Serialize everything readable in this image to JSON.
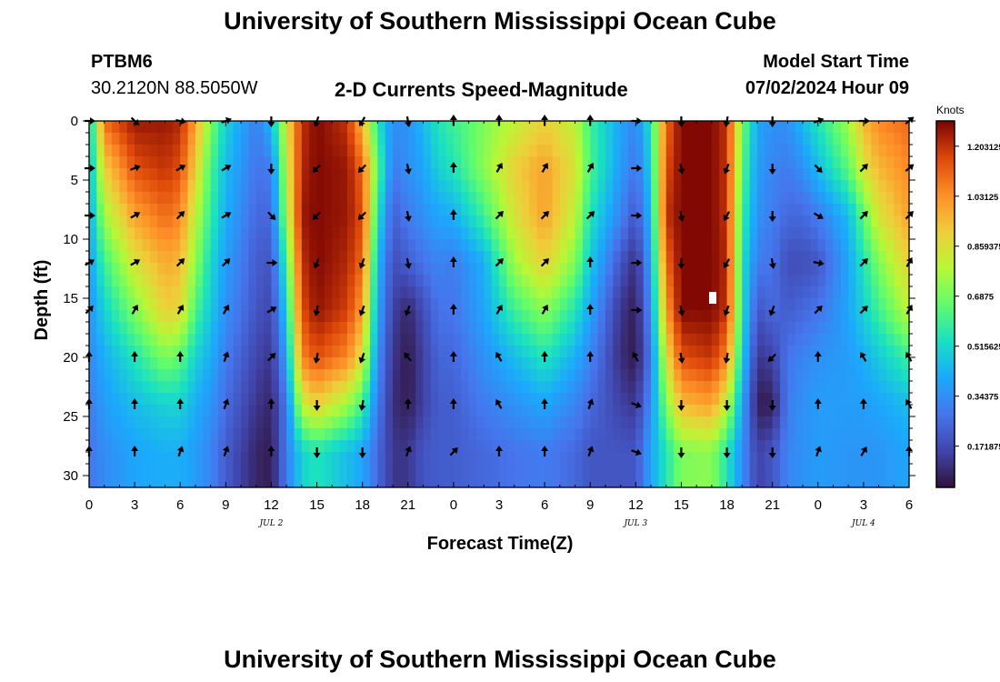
{
  "page": {
    "title": "University of Southern Mississippi Ocean Cube",
    "footer_title": "University of Southern Mississippi Ocean Cube"
  },
  "station": {
    "id": "PTBM6",
    "coords": "30.2120N  88.5050W"
  },
  "model": {
    "start_label": "Model Start Time",
    "start_value": "07/02/2024 Hour 09"
  },
  "chart_data": {
    "type": "heatmap",
    "title": "2-D Currents Speed-Magnitude",
    "xlabel": "Forecast Time(Z)",
    "ylabel": "Depth (ft)",
    "x_unit": "hours since 07/02/2024 00Z",
    "xlim": [
      0,
      54
    ],
    "ylim": [
      31,
      0
    ],
    "x_ticks": [
      0,
      3,
      6,
      9,
      12,
      15,
      18,
      21,
      24,
      27,
      30,
      33,
      36,
      39,
      42,
      45,
      48,
      51,
      54
    ],
    "x_tick_labels": [
      "0",
      "3",
      "6",
      "9",
      "12",
      "15",
      "18",
      "21",
      "0",
      "3",
      "6",
      "9",
      "12",
      "15",
      "18",
      "21",
      "0",
      "3",
      "6"
    ],
    "y_ticks": [
      0,
      5,
      10,
      15,
      20,
      25,
      30
    ],
    "y_tick_labels": [
      "0",
      "5",
      "10",
      "15",
      "20",
      "25",
      "30"
    ],
    "date_labels": [
      {
        "label": "JUL 2",
        "x": 12
      },
      {
        "label": "JUL 3",
        "x": 36
      },
      {
        "label": "JUL 4",
        "x": 51
      }
    ],
    "colorbar": {
      "title": "Knots",
      "range": [
        0.03,
        1.29
      ],
      "tick_values": [
        1.203125,
        1.03125,
        0.859375,
        0.6875,
        0.515625,
        0.34375,
        0.171875
      ],
      "tick_labels": [
        "1.203125",
        "1.03125",
        "0.859375",
        "0.6875",
        "0.515625",
        "0.34375",
        "0.171875"
      ]
    },
    "speed_profiles": [
      {
        "t": 0,
        "knots": [
          0.45,
          0.42,
          0.4,
          0.38,
          0.36,
          0.33,
          0.3,
          0.28
        ]
      },
      {
        "t": 1,
        "knots": [
          1.1,
          0.9,
          0.75,
          0.6,
          0.5,
          0.42,
          0.38,
          0.34
        ]
      },
      {
        "t": 3,
        "knots": [
          1.25,
          1.15,
          1.0,
          0.85,
          0.7,
          0.55,
          0.45,
          0.4
        ]
      },
      {
        "t": 5,
        "knots": [
          1.25,
          1.2,
          1.1,
          0.98,
          0.9,
          0.7,
          0.5,
          0.42
        ]
      },
      {
        "t": 6,
        "knots": [
          1.22,
          1.15,
          1.05,
          0.95,
          0.88,
          0.65,
          0.5,
          0.42
        ]
      },
      {
        "t": 7,
        "knots": [
          1.0,
          0.9,
          0.8,
          0.72,
          0.62,
          0.5,
          0.42,
          0.38
        ]
      },
      {
        "t": 8,
        "knots": [
          0.7,
          0.62,
          0.58,
          0.52,
          0.48,
          0.42,
          0.36,
          0.32
        ]
      },
      {
        "t": 9,
        "knots": [
          0.5,
          0.45,
          0.42,
          0.38,
          0.35,
          0.3,
          0.26,
          0.22
        ]
      },
      {
        "t": 11,
        "knots": [
          0.3,
          0.28,
          0.25,
          0.22,
          0.2,
          0.16,
          0.12,
          0.08
        ]
      },
      {
        "t": 12,
        "knots": [
          0.45,
          0.3,
          0.25,
          0.2,
          0.16,
          0.12,
          0.08,
          0.06
        ]
      },
      {
        "t": 13,
        "knots": [
          0.85,
          0.8,
          0.75,
          0.6,
          0.5,
          0.4,
          0.3,
          0.3
        ]
      },
      {
        "t": 14,
        "knots": [
          1.2,
          1.22,
          1.25,
          1.2,
          1.15,
          1.05,
          0.8,
          0.5
        ]
      },
      {
        "t": 15,
        "knots": [
          1.28,
          1.28,
          1.28,
          1.28,
          1.26,
          1.15,
          0.9,
          0.55
        ]
      },
      {
        "t": 17,
        "knots": [
          1.2,
          1.25,
          1.25,
          1.22,
          1.18,
          1.05,
          0.75,
          0.45
        ]
      },
      {
        "t": 18,
        "knots": [
          0.95,
          1.1,
          1.15,
          1.1,
          1.0,
          0.85,
          0.6,
          0.4
        ]
      },
      {
        "t": 19,
        "knots": [
          0.55,
          0.65,
          0.55,
          0.45,
          0.4,
          0.35,
          0.3,
          0.25
        ]
      },
      {
        "t": 20,
        "knots": [
          0.35,
          0.3,
          0.22,
          0.18,
          0.15,
          0.12,
          0.1,
          0.12
        ]
      },
      {
        "t": 21,
        "knots": [
          0.35,
          0.35,
          0.3,
          0.22,
          0.08,
          0.05,
          0.06,
          0.12
        ]
      },
      {
        "t": 22,
        "knots": [
          0.45,
          0.4,
          0.35,
          0.28,
          0.18,
          0.15,
          0.15,
          0.2
        ]
      },
      {
        "t": 23,
        "knots": [
          0.55,
          0.5,
          0.4,
          0.32,
          0.28,
          0.24,
          0.22,
          0.22
        ]
      },
      {
        "t": 24,
        "knots": [
          0.6,
          0.55,
          0.42,
          0.3,
          0.28,
          0.25,
          0.22,
          0.22
        ]
      },
      {
        "t": 26,
        "knots": [
          0.7,
          0.72,
          0.6,
          0.42,
          0.4,
          0.35,
          0.3,
          0.25
        ]
      },
      {
        "t": 28,
        "knots": [
          0.8,
          0.9,
          0.85,
          0.75,
          0.6,
          0.45,
          0.35,
          0.28
        ]
      },
      {
        "t": 30,
        "knots": [
          0.9,
          1.0,
          1.0,
          0.9,
          0.72,
          0.55,
          0.4,
          0.3
        ]
      },
      {
        "t": 32,
        "knots": [
          0.8,
          0.85,
          0.8,
          0.7,
          0.55,
          0.42,
          0.32,
          0.25
        ]
      },
      {
        "t": 33,
        "knots": [
          0.6,
          0.62,
          0.55,
          0.48,
          0.4,
          0.32,
          0.25,
          0.2
        ]
      },
      {
        "t": 35,
        "knots": [
          0.4,
          0.38,
          0.32,
          0.2,
          0.12,
          0.1,
          0.15,
          0.2
        ]
      },
      {
        "t": 36,
        "knots": [
          0.32,
          0.28,
          0.2,
          0.1,
          0.06,
          0.05,
          0.12,
          0.2
        ]
      },
      {
        "t": 37,
        "knots": [
          0.55,
          0.5,
          0.45,
          0.4,
          0.35,
          0.3,
          0.35,
          0.4
        ]
      },
      {
        "t": 38,
        "knots": [
          1.1,
          1.15,
          1.2,
          1.1,
          1.0,
          0.85,
          0.7,
          0.55
        ]
      },
      {
        "t": 39,
        "knots": [
          1.28,
          1.28,
          1.28,
          1.28,
          1.28,
          1.15,
          0.95,
          0.7
        ]
      },
      {
        "t": 41,
        "knots": [
          1.28,
          1.28,
          1.28,
          1.28,
          1.28,
          1.2,
          1.0,
          0.72
        ]
      },
      {
        "t": 42,
        "knots": [
          1.2,
          1.2,
          1.2,
          1.22,
          1.2,
          1.05,
          0.8,
          0.55
        ]
      },
      {
        "t": 43,
        "knots": [
          0.7,
          0.65,
          0.6,
          0.55,
          0.55,
          0.5,
          0.4,
          0.35
        ]
      },
      {
        "t": 44,
        "knots": [
          0.4,
          0.38,
          0.35,
          0.3,
          0.2,
          0.12,
          0.06,
          0.15
        ]
      },
      {
        "t": 45,
        "knots": [
          0.35,
          0.32,
          0.3,
          0.28,
          0.25,
          0.15,
          0.06,
          0.2
        ]
      },
      {
        "t": 46,
        "knots": [
          0.35,
          0.3,
          0.25,
          0.18,
          0.22,
          0.28,
          0.3,
          0.32
        ]
      },
      {
        "t": 47,
        "knots": [
          0.45,
          0.35,
          0.25,
          0.18,
          0.25,
          0.32,
          0.35,
          0.35
        ]
      },
      {
        "t": 48,
        "knots": [
          0.55,
          0.45,
          0.3,
          0.2,
          0.28,
          0.35,
          0.38,
          0.38
        ]
      },
      {
        "t": 50,
        "knots": [
          0.75,
          0.65,
          0.45,
          0.4,
          0.4,
          0.38,
          0.38,
          0.36
        ]
      },
      {
        "t": 51,
        "knots": [
          0.95,
          0.85,
          0.65,
          0.55,
          0.5,
          0.42,
          0.38,
          0.36
        ]
      },
      {
        "t": 52,
        "knots": [
          1.05,
          0.95,
          0.85,
          0.7,
          0.6,
          0.48,
          0.4,
          0.36
        ]
      },
      {
        "t": 54,
        "knots": [
          1.1,
          1.05,
          1.0,
          0.9,
          0.8,
          0.6,
          0.45,
          0.4
        ]
      }
    ],
    "profile_depths": [
      0,
      4,
      8,
      12,
      16,
      20,
      24,
      28
    ],
    "vectors": {
      "times": [
        0,
        3,
        6,
        9,
        12,
        15,
        18,
        21,
        24,
        27,
        30,
        33,
        36,
        39,
        42,
        45,
        48,
        51,
        54
      ],
      "depths": [
        0,
        4,
        8,
        12,
        16,
        20,
        24,
        28
      ],
      "direction_deg": [
        [
          90,
          135,
          100,
          70,
          180,
          200,
          210,
          170,
          0,
          0,
          0,
          0,
          90,
          180,
          190,
          180,
          70,
          90,
          50
        ],
        [
          90,
          70,
          60,
          60,
          180,
          225,
          225,
          170,
          0,
          30,
          30,
          30,
          90,
          170,
          200,
          180,
          135,
          45,
          50
        ],
        [
          90,
          60,
          45,
          60,
          135,
          225,
          225,
          170,
          0,
          45,
          45,
          45,
          90,
          170,
          210,
          180,
          120,
          45,
          45
        ],
        [
          60,
          60,
          45,
          45,
          90,
          200,
          200,
          170,
          0,
          45,
          45,
          0,
          90,
          180,
          210,
          170,
          100,
          45,
          30
        ],
        [
          45,
          30,
          30,
          30,
          60,
          190,
          200,
          200,
          0,
          30,
          30,
          0,
          90,
          170,
          200,
          200,
          45,
          45,
          30
        ],
        [
          0,
          0,
          0,
          20,
          45,
          190,
          200,
          320,
          0,
          330,
          0,
          0,
          330,
          170,
          190,
          225,
          0,
          330,
          330
        ],
        [
          0,
          0,
          0,
          20,
          0,
          180,
          190,
          0,
          0,
          330,
          0,
          20,
          110,
          180,
          180,
          180,
          0,
          0,
          330
        ],
        [
          0,
          0,
          20,
          20,
          0,
          180,
          180,
          20,
          45,
          0,
          0,
          20,
          110,
          180,
          180,
          180,
          20,
          30,
          0
        ]
      ]
    }
  }
}
